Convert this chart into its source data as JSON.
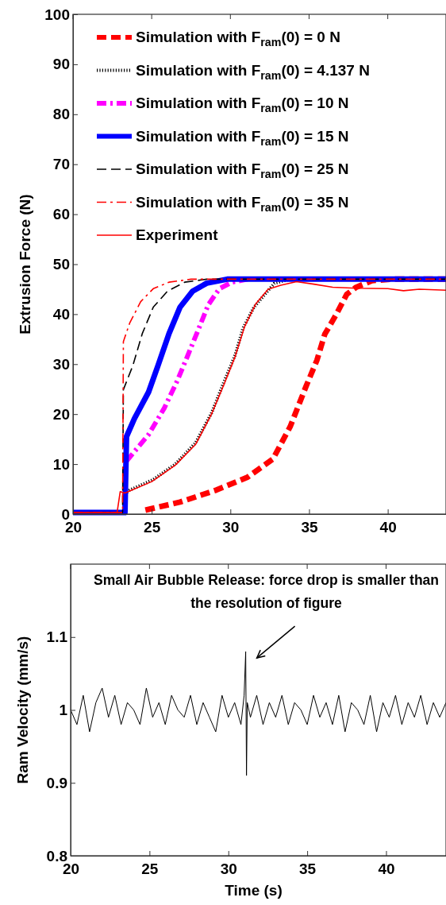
{
  "chart_data": [
    {
      "type": "line",
      "ylabel": "Extrusion Force (N)",
      "xlim": [
        20,
        43.7
      ],
      "xticks": [
        20,
        25,
        30,
        35,
        40
      ],
      "ylim": [
        0,
        100
      ],
      "yticks": [
        0,
        10,
        20,
        30,
        40,
        50,
        60,
        70,
        80,
        90,
        100
      ],
      "legend": "top left",
      "grid": false,
      "tick_labels": true,
      "series": [
        {
          "name": "Simulation with F$_{ram}$(0) = 0 N",
          "color": "#ff0000",
          "line_style": "dashed",
          "x": [
            24.6,
            26.8,
            29.1,
            31.1,
            32.7,
            33.8,
            34.8,
            35.5,
            36.0,
            36.7,
            37.4,
            38.0,
            39.0,
            40.2,
            43.7
          ],
          "values": [
            0.8,
            2.4,
            4.8,
            7.4,
            11,
            17.5,
            25.5,
            30.8,
            36,
            39.8,
            44,
            45.4,
            46.7,
            47,
            47
          ]
        },
        {
          "name": "Simulation with F$_{ram}$(0) = 4.137 N",
          "color": "#000000",
          "line_style": "dotted",
          "x": [
            20,
            23.3,
            23.35,
            23.6,
            25.1,
            26.5,
            27.8,
            28.8,
            29.6,
            30.3,
            30.8,
            31.5,
            32.2,
            32.8,
            33.8,
            43.7
          ],
          "values": [
            0.3,
            0.3,
            4.2,
            4.8,
            6.9,
            10,
            14.3,
            20.2,
            26.5,
            31.8,
            37.2,
            41.4,
            44,
            46.2,
            47,
            47
          ]
        },
        {
          "name": "Simulation with F$_{ram}$(0) = 10 N",
          "color": "#ff00ff",
          "line_style": "dashdot",
          "x": [
            23.4,
            24.8,
            25.8,
            26.6,
            27.3,
            28.0,
            28.6,
            29.3,
            30.1,
            31.1
          ],
          "values": [
            10.6,
            15.9,
            21.2,
            26.5,
            31.8,
            37.2,
            41.9,
            45.1,
            46.4,
            47
          ]
        },
        {
          "name": "Simulation with F$_{ram}$(0) = 15 N",
          "color": "#0000ff",
          "line_style": "solid",
          "x": [
            20,
            23.3,
            23.4,
            23.9,
            24.8,
            25.4,
            26.1,
            26.8,
            27.6,
            28.5,
            29.8,
            43.7
          ],
          "values": [
            0.3,
            0.3,
            15.5,
            19.1,
            24.4,
            29.7,
            36.1,
            41.4,
            44.6,
            46.2,
            47,
            47
          ]
        },
        {
          "name": "Simulation with F$_{ram}$(0) = 25 N",
          "color": "#000000",
          "line_style": "dashed",
          "x": [
            20,
            23.15,
            23.2,
            23.8,
            24.4,
            25.1,
            26.0,
            27.1,
            28.5,
            43.7
          ],
          "values": [
            0.3,
            0.3,
            24.9,
            29.7,
            36.1,
            41.4,
            44.6,
            46.4,
            47,
            47
          ]
        },
        {
          "name": "Simulation with F$_{ram}$(0) = 35 N",
          "color": "#ff0000",
          "line_style": "dashdot",
          "x": [
            20,
            23.15,
            23.2,
            23.6,
            24.3,
            25.1,
            26.1,
            27.5,
            43.7
          ],
          "values": [
            0.3,
            0.3,
            34.5,
            38.2,
            42.5,
            45.1,
            46.4,
            47,
            47
          ]
        },
        {
          "name": "Experiment",
          "color": "#ff0000",
          "line_style": "solid",
          "x": [
            20,
            22.8,
            23.0,
            23.3,
            25.0,
            26.5,
            27.8,
            28.8,
            29.6,
            30.3,
            30.9,
            31.6,
            32.4,
            33.2,
            34.2,
            35.3,
            36.5,
            38.0,
            40.0,
            41.0,
            42.0,
            43.7
          ],
          "values": [
            0.3,
            0.3,
            4.5,
            4.2,
            6.5,
            9.8,
            14,
            20,
            26,
            31.5,
            37.5,
            42,
            45,
            45.8,
            46.5,
            46,
            45.4,
            45.2,
            45.1,
            44.7,
            45,
            44.8
          ]
        }
      ]
    },
    {
      "type": "line",
      "ylabel": "Ram Velocity (mm/s)",
      "xlabel": "Time (s)",
      "xlim": [
        20,
        43.8
      ],
      "xticks": [
        20,
        25,
        30,
        35,
        40
      ],
      "ylim": [
        0.8,
        1.2
      ],
      "yticks": [
        0.8,
        0.9,
        1,
        1.1
      ],
      "legend": false,
      "grid": false,
      "annotations": [
        {
          "text": "Small Air Bubble Release: force drop is smaller than the resolution of figure",
          "x": 31.1,
          "y": 1.08
        }
      ],
      "series": [
        {
          "color": "#000000",
          "line_style": "solid",
          "x": [
            20,
            20.4,
            20.8,
            21.2,
            21.6,
            22.0,
            22.4,
            22.8,
            23.2,
            23.6,
            24.0,
            24.4,
            24.8,
            25.2,
            25.6,
            26.0,
            26.4,
            26.8,
            27.2,
            27.6,
            28.0,
            28.4,
            28.8,
            29.2,
            29.6,
            30.0,
            30.4,
            30.8,
            31.0,
            31.1,
            31.15,
            31.2,
            31.4,
            31.8,
            32.2,
            32.6,
            33.0,
            33.4,
            33.8,
            34.2,
            34.6,
            35.0,
            35.4,
            35.8,
            36.2,
            36.6,
            37.0,
            37.4,
            37.8,
            38.2,
            38.6,
            39.0,
            39.4,
            39.8,
            40.2,
            40.6,
            41.0,
            41.4,
            41.8,
            42.2,
            42.6,
            43.0,
            43.4,
            43.8
          ],
          "values": [
            1.0,
            0.98,
            1.02,
            0.97,
            1.01,
            1.03,
            0.99,
            1.02,
            0.98,
            1.01,
            1.0,
            0.98,
            1.03,
            0.99,
            1.01,
            0.98,
            1.02,
            1.0,
            0.99,
            1.02,
            0.98,
            1.01,
            0.99,
            0.97,
            1.02,
            0.99,
            1.01,
            0.98,
            1.02,
            1.08,
            0.91,
            1.01,
            0.99,
            1.02,
            0.98,
            1.01,
            0.99,
            1.02,
            0.98,
            1.01,
            1.0,
            0.98,
            1.02,
            0.99,
            1.01,
            0.98,
            1.02,
            0.97,
            1.01,
            1.0,
            0.98,
            1.02,
            0.97,
            1.01,
            0.99,
            1.02,
            0.98,
            1.01,
            0.99,
            1.02,
            0.98,
            1.01,
            0.99,
            1.01
          ]
        }
      ]
    }
  ]
}
